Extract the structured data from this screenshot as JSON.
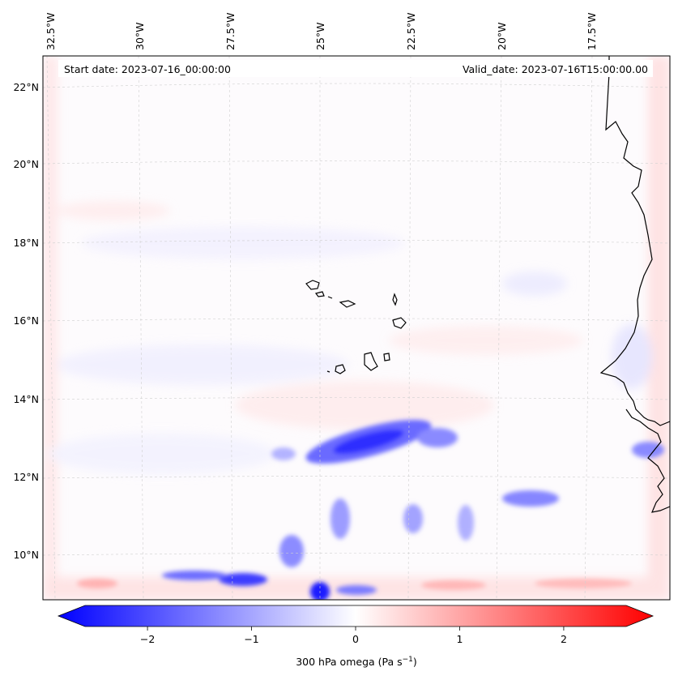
{
  "header": {
    "start_date": "Start date: 2023-07-16_00:00:00",
    "valid_date": "Valid_date: 2023-07-16T15:00:00.00"
  },
  "longitude_labels": [
    "32.5°W",
    "30°W",
    "27.5°W",
    "25°W",
    "22.5°W",
    "20°W",
    "17.5°W"
  ],
  "latitude_labels": [
    "22°N",
    "20°N",
    "18°N",
    "16°N",
    "14°N",
    "12°N",
    "10°N"
  ],
  "colorbar": {
    "title_main": "300 hPa omega (Pa s",
    "title_exp": "−1",
    "title_end": ")",
    "ticks": [
      "−2",
      "−1",
      "0",
      "1",
      "2"
    ],
    "tick_values": [
      -2,
      -1,
      0,
      1,
      2
    ],
    "range": [
      -2.6,
      2.6
    ],
    "colormap": "bwr",
    "color_low": "#0000ff",
    "color_mid": "#ffffff",
    "color_high": "#ff0000"
  },
  "map": {
    "variable": "omega",
    "level_hPa": 300,
    "lon_range": [
      -33.0,
      -15.0
    ],
    "lat_range": [
      8.8,
      22.8
    ],
    "coastline_color": "#000000",
    "gridline_color": "#cccccc"
  }
}
